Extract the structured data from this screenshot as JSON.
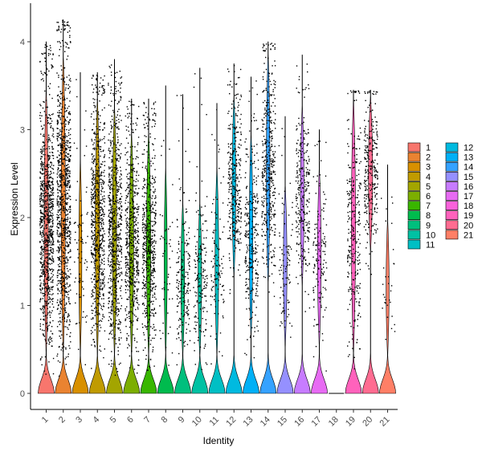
{
  "chart_data": {
    "type": "violin",
    "xlabel": "Identity",
    "ylabel": "Expression Level",
    "ylim": [
      -0.2,
      4.35
    ],
    "yticks": [
      0,
      1,
      2,
      3,
      4
    ],
    "grid": false,
    "legend_position": "right",
    "categories": [
      "1",
      "2",
      "3",
      "4",
      "5",
      "6",
      "7",
      "8",
      "9",
      "10",
      "11",
      "12",
      "13",
      "14",
      "15",
      "16",
      "17",
      "18",
      "19",
      "20",
      "21"
    ],
    "colors": [
      "#F8766D",
      "#EA8331",
      "#D89000",
      "#C09B00",
      "#A3A500",
      "#7CAE00",
      "#39B600",
      "#00BB4E",
      "#00BF7D",
      "#00C1A3",
      "#00BFC4",
      "#00BAE0",
      "#00B0F6",
      "#35A2FF",
      "#9590FF",
      "#C77CFF",
      "#E76BF3",
      "#FA62DB",
      "#FF62BC",
      "#FF6C91",
      "#FF7F66"
    ],
    "series": [
      {
        "name": "1",
        "max": 4.0,
        "body_low": 0.4,
        "body_high": 3.5,
        "body_width": 0.7,
        "point_density": 1.0
      },
      {
        "name": "2",
        "max": 4.25,
        "body_low": 0.4,
        "body_high": 3.9,
        "body_width": 0.7,
        "point_density": 1.0
      },
      {
        "name": "3",
        "max": 3.65,
        "body_low": 0.4,
        "body_high": 2.7,
        "body_width": 0.5,
        "point_density": 0.08
      },
      {
        "name": "4",
        "max": 3.65,
        "body_low": 0.4,
        "body_high": 3.4,
        "body_width": 0.7,
        "point_density": 0.75
      },
      {
        "name": "5",
        "max": 3.8,
        "body_low": 0.4,
        "body_high": 3.3,
        "body_width": 0.7,
        "point_density": 0.75
      },
      {
        "name": "6",
        "max": 3.35,
        "body_low": 0.4,
        "body_high": 3.0,
        "body_width": 0.7,
        "point_density": 0.6
      },
      {
        "name": "7",
        "max": 3.35,
        "body_low": 0.4,
        "body_high": 3.0,
        "body_width": 0.7,
        "point_density": 0.6
      },
      {
        "name": "8",
        "max": 3.5,
        "body_low": 0.4,
        "body_high": 2.6,
        "body_width": 0.5,
        "point_density": 0.05
      },
      {
        "name": "9",
        "max": 3.4,
        "body_low": 0.4,
        "body_high": 2.2,
        "body_width": 0.6,
        "point_density": 0.2
      },
      {
        "name": "10",
        "max": 3.7,
        "body_low": 0.4,
        "body_high": 2.2,
        "body_width": 0.6,
        "point_density": 0.18
      },
      {
        "name": "11",
        "max": 3.3,
        "body_low": 0.4,
        "body_high": 2.6,
        "body_width": 0.6,
        "point_density": 0.12
      },
      {
        "name": "12",
        "max": 3.75,
        "body_low": 1.3,
        "body_high": 3.4,
        "body_width": 0.6,
        "point_density": 0.35
      },
      {
        "name": "13",
        "max": 3.6,
        "body_low": 0.6,
        "body_high": 3.0,
        "body_width": 0.6,
        "point_density": 0.3
      },
      {
        "name": "14",
        "max": 4.0,
        "body_low": 1.2,
        "body_high": 3.9,
        "body_width": 0.6,
        "point_density": 0.45
      },
      {
        "name": "15",
        "max": 3.15,
        "body_low": 0.5,
        "body_high": 2.4,
        "body_width": 0.6,
        "point_density": 0.1
      },
      {
        "name": "16",
        "max": 3.85,
        "body_low": 1.2,
        "body_high": 3.3,
        "body_width": 0.6,
        "point_density": 0.3
      },
      {
        "name": "17",
        "max": 3.0,
        "body_low": 0.5,
        "body_high": 2.6,
        "body_width": 0.6,
        "point_density": 0.15
      },
      {
        "name": "18",
        "max": 0.0,
        "body_low": 0.0,
        "body_high": 0.0,
        "body_width": 0.0,
        "point_density": 0.0
      },
      {
        "name": "19",
        "max": 3.45,
        "body_low": 0.4,
        "body_high": 3.4,
        "body_width": 0.7,
        "point_density": 0.3
      },
      {
        "name": "20",
        "max": 3.45,
        "body_low": 1.6,
        "body_high": 3.4,
        "body_width": 0.7,
        "point_density": 0.3
      },
      {
        "name": "21",
        "max": 2.6,
        "body_low": 0.4,
        "body_high": 2.0,
        "body_width": 0.5,
        "point_density": 0.03
      }
    ]
  }
}
